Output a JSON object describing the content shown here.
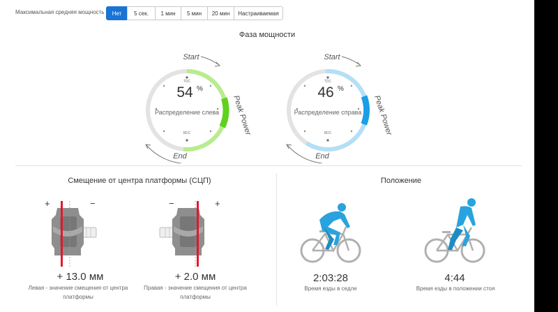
{
  "filter": {
    "label": "Максимальная средняя мощность",
    "options": [
      {
        "label": "Нет",
        "active": true
      },
      {
        "label": "5 сек.",
        "active": false
      },
      {
        "label": "1 мин",
        "active": false
      },
      {
        "label": "5 мин",
        "active": false
      },
      {
        "label": "20 мин",
        "active": false
      },
      {
        "label": "Настраиваемая",
        "active": false
      }
    ]
  },
  "power_phase": {
    "title": "Фаза мощности",
    "left": {
      "value": "54",
      "unit": "%",
      "caption": "Распределение слева",
      "start_label": "Start",
      "peak_label": "Peak Power",
      "end_label": "End",
      "tdc": "TDC",
      "bdc": "BDC",
      "light_color": "#b8ec8c",
      "dark_color": "#5fd21e"
    },
    "right": {
      "value": "46",
      "unit": "%",
      "caption": "Распределение справа",
      "start_label": "Start",
      "peak_label": "Peak Power",
      "end_label": "End",
      "tdc": "TDC",
      "bdc": "BDC",
      "light_color": "#b3dff7",
      "dark_color": "#1a9ee6"
    }
  },
  "pco": {
    "title": "Смещение от центра платформы (СЦП)",
    "left": {
      "plus": "+",
      "minus": "−",
      "value": "+ 13.0 мм",
      "caption_line1": "Левая - значение смещения от центра",
      "caption_line2": "платформы"
    },
    "right": {
      "plus": "+",
      "minus": "−",
      "value": "+ 2.0 мм",
      "caption_line1": "Правая - значение смещения от центра",
      "caption_line2": "платформы"
    }
  },
  "position": {
    "title": "Положение",
    "seated": {
      "value": "2:03:28",
      "caption": "Время езды в седле"
    },
    "standing": {
      "value": "4:44",
      "caption": "Время езды в положении стоя"
    },
    "rider_color": "#29a3de",
    "bike_color": "#b0b0b0"
  }
}
